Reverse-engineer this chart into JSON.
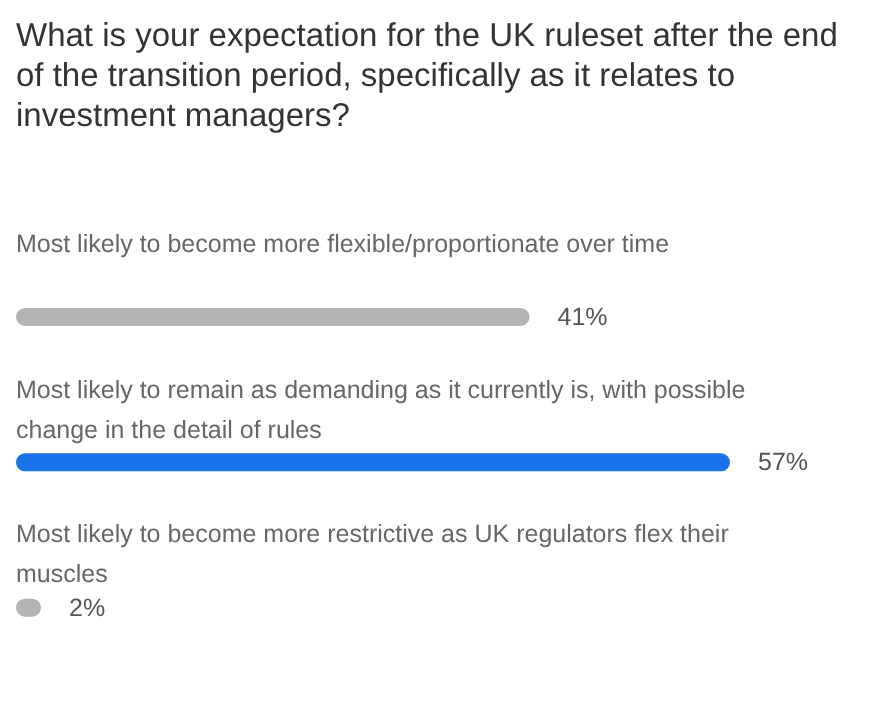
{
  "chart_data": {
    "type": "bar",
    "orientation": "horizontal",
    "title": "What is your expectation for the UK ruleset after the end of the transition period, specifically as it relates to investment managers?",
    "categories": [
      "Most likely to become more flexible/proportionate over time",
      "Most likely to remain as demanding as it currently is, with possible change in the detail of rules",
      "Most likely to become more restrictive as UK regulators flex their muscles"
    ],
    "values": [
      41,
      57,
      2
    ],
    "value_labels": [
      "41%",
      "57%",
      "2%"
    ],
    "colors": [
      "#b3b3b3",
      "#1a73e8",
      "#b3b3b3"
    ]
  }
}
